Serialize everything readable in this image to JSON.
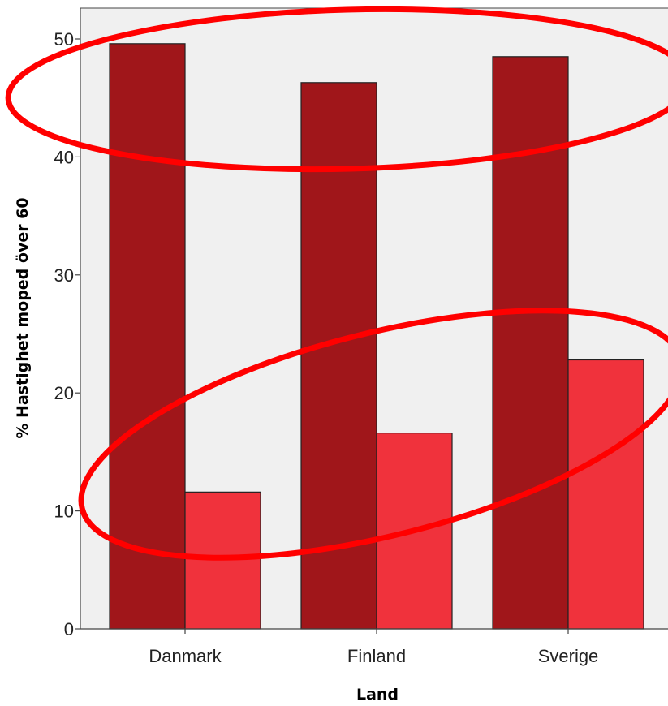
{
  "chart_data": {
    "type": "bar",
    "categories": [
      "Danmark",
      "Finland",
      "Sverige"
    ],
    "series": [
      {
        "values": [
          49.6,
          46.3,
          48.5
        ]
      },
      {
        "values": [
          11.6,
          16.6,
          22.8
        ]
      }
    ],
    "xlabel": "Land",
    "ylabel": "% Hastighet moped över 60",
    "ylim": [
      0,
      52
    ],
    "yticks": [
      0,
      10,
      20,
      30,
      40,
      50
    ],
    "grid": false,
    "colors": {
      "series": [
        "#a0161a",
        "#f0323c"
      ],
      "plot_background": "#f0f0f0",
      "annotation": "#ff0000"
    }
  },
  "annotations": [
    {
      "shape": "ellipse",
      "highlights": "series-1 bars"
    },
    {
      "shape": "ellipse",
      "highlights": "series-2 bars"
    }
  ]
}
